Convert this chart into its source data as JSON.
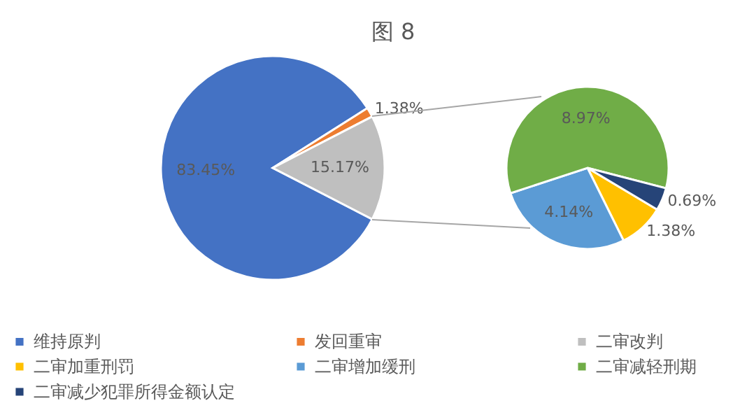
{
  "chart_data": [
    {
      "type": "pie",
      "title": "图 8",
      "categories": [
        "维持原判",
        "发回重审",
        "二审改判"
      ],
      "values": [
        83.45,
        1.38,
        15.17
      ],
      "colors": [
        "#4472c4",
        "#ed7d31",
        "#bfbfbf"
      ],
      "value_labels": [
        "83.45%",
        "1.38%",
        "15.17%"
      ],
      "legend": "bottom"
    },
    {
      "type": "pie",
      "categories": [
        "二审加重刑罚",
        "二审增加缓刑",
        "二审减轻刑期",
        "二审减少犯罪所得金额认定"
      ],
      "values": [
        1.38,
        4.14,
        8.97,
        0.69
      ],
      "colors": [
        "#ffc000",
        "#5b9bd5",
        "#70ad47",
        "#264478"
      ],
      "value_labels": [
        "1.38%",
        "4.14%",
        "8.97%",
        "0.69%"
      ],
      "legend": "bottom"
    }
  ]
}
